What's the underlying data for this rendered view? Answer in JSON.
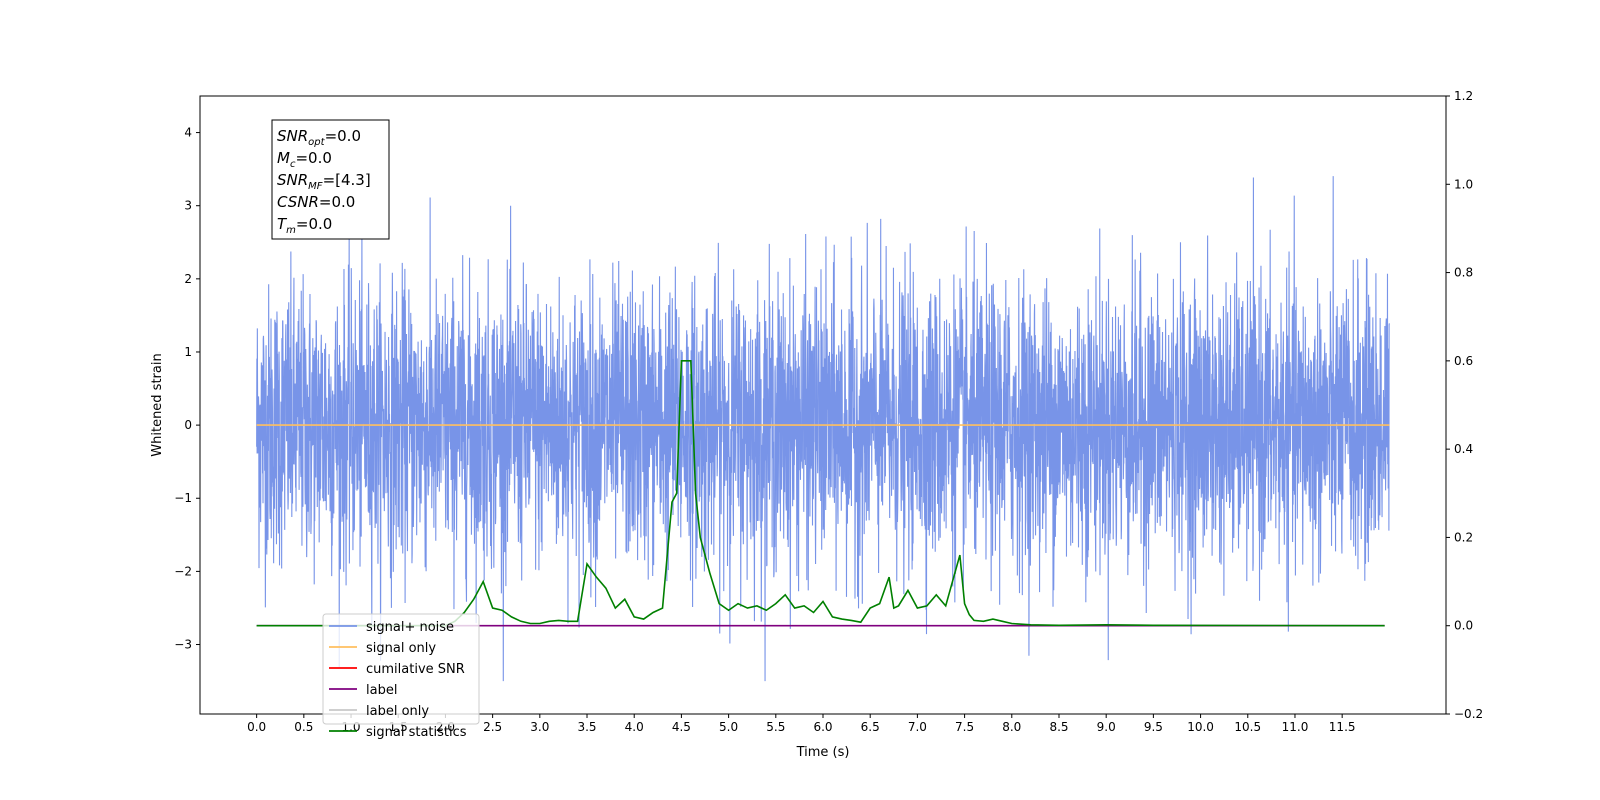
{
  "chart_data": {
    "type": "line",
    "xlabel": "Time (s)",
    "ylabel": "Whitened strain",
    "xlim": [
      -0.6,
      12.6
    ],
    "ylim": [
      -3.95,
      4.5
    ],
    "y2lim": [
      -0.2,
      1.2
    ],
    "xticks": [
      "0.0",
      "0.5",
      "1.0",
      "1.5",
      "2.0",
      "2.5",
      "3.0",
      "3.5",
      "4.0",
      "4.5",
      "5.0",
      "5.5",
      "6.0",
      "6.5",
      "7.0",
      "7.5",
      "8.0",
      "8.5",
      "9.0",
      "9.5",
      "10.0",
      "10.5",
      "11.0",
      "11.5"
    ],
    "xtick_values": [
      0,
      0.5,
      1,
      1.5,
      2,
      2.5,
      3,
      3.5,
      4,
      4.5,
      5,
      5.5,
      6,
      6.5,
      7,
      7.5,
      8,
      8.5,
      9,
      9.5,
      10,
      10.5,
      11,
      11.5
    ],
    "yticks": [
      "4",
      "3",
      "2",
      "1",
      "0",
      "−1",
      "−2",
      "−3"
    ],
    "ytick_values": [
      4,
      3,
      2,
      1,
      0,
      -1,
      -2,
      -3
    ],
    "y2ticks": [
      "1.2",
      "1.0",
      "0.8",
      "0.6",
      "0.4",
      "0.2",
      "0.0",
      "−0.2"
    ],
    "y2tick_values": [
      1.2,
      1.0,
      0.8,
      0.6,
      0.4,
      0.2,
      0.0,
      -0.2
    ],
    "grid": false,
    "legend_position": "lower-left",
    "series": [
      {
        "name": "signal+ noise",
        "color": "#7894e8",
        "axis": "left",
        "kind": "noise",
        "x_range": [
          0,
          12.0
        ],
        "amplitude_std": 0.95,
        "peak_range": [
          -3.5,
          3.55
        ]
      },
      {
        "name": "signal only",
        "color": "#ffbf5f",
        "axis": "left",
        "x": [
          0,
          12.0
        ],
        "values": [
          0,
          0
        ]
      },
      {
        "name": "cumilative SNR",
        "color": "#ff0000",
        "axis": "right",
        "x": [],
        "values": []
      },
      {
        "name": "label",
        "color": "#7f007f",
        "axis": "right",
        "x": [
          0,
          11.95
        ],
        "values": [
          0,
          0
        ]
      },
      {
        "name": "label only",
        "color": "#c8c8c8",
        "axis": "right",
        "x": [],
        "values": []
      },
      {
        "name": "signal statistics",
        "color": "#008000",
        "axis": "right",
        "x": [
          0,
          2.0,
          2.1,
          2.2,
          2.3,
          2.4,
          2.5,
          2.6,
          2.7,
          2.8,
          2.9,
          3.0,
          3.1,
          3.2,
          3.3,
          3.4,
          3.5,
          3.6,
          3.7,
          3.8,
          3.9,
          4.0,
          4.1,
          4.2,
          4.3,
          4.4,
          4.45,
          4.5,
          4.55,
          4.6,
          4.65,
          4.7,
          4.8,
          4.9,
          5.0,
          5.1,
          5.2,
          5.3,
          5.4,
          5.5,
          5.6,
          5.7,
          5.8,
          5.9,
          6.0,
          6.1,
          6.2,
          6.3,
          6.4,
          6.5,
          6.6,
          6.7,
          6.75,
          6.8,
          6.9,
          7.0,
          7.1,
          7.2,
          7.3,
          7.45,
          7.5,
          7.55,
          7.6,
          7.7,
          7.8,
          7.9,
          8.0,
          8.2,
          8.5,
          9.0,
          9.5,
          11.95
        ],
        "values": [
          0,
          0,
          0.01,
          0.03,
          0.06,
          0.1,
          0.04,
          0.035,
          0.02,
          0.01,
          0.005,
          0.005,
          0.01,
          0.012,
          0.01,
          0.01,
          0.14,
          0.11,
          0.085,
          0.04,
          0.06,
          0.02,
          0.015,
          0.03,
          0.04,
          0.28,
          0.3,
          0.6,
          0.6,
          0.6,
          0.3,
          0.2,
          0.12,
          0.05,
          0.035,
          0.05,
          0.04,
          0.045,
          0.035,
          0.05,
          0.07,
          0.04,
          0.045,
          0.03,
          0.055,
          0.02,
          0.015,
          0.012,
          0.008,
          0.04,
          0.05,
          0.11,
          0.04,
          0.045,
          0.08,
          0.04,
          0.045,
          0.07,
          0.045,
          0.16,
          0.05,
          0.025,
          0.012,
          0.01,
          0.015,
          0.01,
          0.005,
          0.002,
          0.001,
          0.002,
          0.001,
          0
        ]
      }
    ],
    "annotation_lines": [
      {
        "main": "SNR",
        "sub": "opt",
        "rest": "=0.0"
      },
      {
        "main": "M",
        "sub": "c",
        "rest": "=0.0"
      },
      {
        "main": "SNR",
        "sub": "MF",
        "rest": "=[4.3]"
      },
      {
        "main": "CSNR",
        "sub": "",
        "rest": "=0.0"
      },
      {
        "main": "T",
        "sub": "m",
        "rest": "=0.0"
      }
    ]
  }
}
